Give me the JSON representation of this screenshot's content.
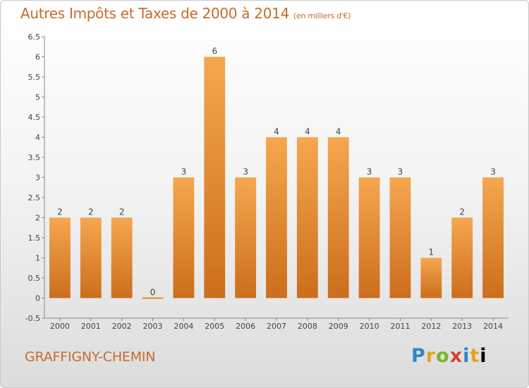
{
  "header": {
    "title": "Autres Impôts et Taxes de 2000 à 2014",
    "unit": "(en milliers d'€)"
  },
  "footer": {
    "town": "GRAFFIGNY-CHEMIN",
    "logo_letters": [
      "P",
      "r",
      "o",
      "x",
      "i",
      "t",
      "i"
    ]
  },
  "colors": {
    "bar_light": "#f5a74f",
    "bar_dark": "#cc6e1c",
    "title": "#c96a2e"
  },
  "chart_data": {
    "type": "bar",
    "categories": [
      "2000",
      "2001",
      "2002",
      "2003",
      "2004",
      "2005",
      "2006",
      "2007",
      "2008",
      "2009",
      "2010",
      "2011",
      "2012",
      "2013",
      "2014"
    ],
    "values": [
      2,
      2,
      2,
      0,
      3,
      6,
      3,
      4,
      4,
      4,
      3,
      3,
      1,
      2,
      3
    ],
    "data_labels": [
      "2",
      "2",
      "2",
      "0",
      "3",
      "6",
      "3",
      "4",
      "4",
      "4",
      "3",
      "3",
      "1",
      "2",
      "3"
    ],
    "y_ticks": [
      "-0.5",
      "0",
      "0.5",
      "1",
      "1.5",
      "2",
      "2.5",
      "3",
      "3.5",
      "4",
      "4.5",
      "5",
      "5.5",
      "6",
      "6.5"
    ],
    "ylim": [
      -0.5,
      6.5
    ],
    "grid": false,
    "legend": "none"
  }
}
